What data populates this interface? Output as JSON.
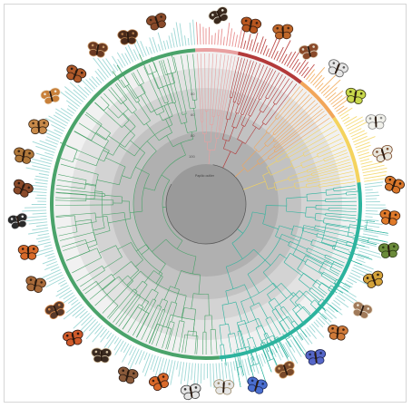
{
  "figure": {
    "scale_labels": [
      "50",
      "60",
      "80",
      "100"
    ],
    "root_label": "Papilio\noutlier",
    "clades": [
      {
        "id": "clade-pink",
        "color": "#e8a0a0",
        "tip_color": "#e88f8f"
      },
      {
        "id": "clade-darkred",
        "color": "#b33a3a",
        "tip_color": "#c0504d"
      },
      {
        "id": "clade-orange",
        "color": "#f2a65a",
        "tip_color": "#f3b36b"
      },
      {
        "id": "clade-yellow",
        "color": "#f4d35e",
        "tip_color": "#f6dc7a"
      },
      {
        "id": "clade-teal",
        "color": "#2db39e",
        "tip_color": "#9fd8d6"
      },
      {
        "id": "clade-green",
        "color": "#4aa36a",
        "tip_color": "#9fd8d6"
      }
    ],
    "ring_colors": {
      "outer_gray_1": "#e2e2e2",
      "outer_gray_2": "#d3d3d3",
      "outer_gray_3": "#c2c2c2",
      "outer_gray_4": "#b0b0b0",
      "center": "#9a9a9a",
      "tip_bars": "#a8dcd9"
    },
    "butterflies": [
      {
        "name": "butterfly-top",
        "colors": [
          "#3b2a1e",
          "#e7e2d4"
        ]
      },
      {
        "name": "butterfly-top-right-1",
        "colors": [
          "#b8561f",
          "#3a1f12"
        ]
      },
      {
        "name": "butterfly-top-right-2",
        "colors": [
          "#c0682a",
          "#4a2614"
        ]
      },
      {
        "name": "butterfly-top-right-3",
        "colors": [
          "#8a4a2a",
          "#e0d6c2"
        ]
      },
      {
        "name": "butterfly-top-right-4",
        "colors": [
          "#e6e6e6",
          "#5a5a5a"
        ]
      },
      {
        "name": "butterfly-right-green",
        "colors": [
          "#c8d84c",
          "#3a3a14"
        ]
      },
      {
        "name": "butterfly-right-white",
        "colors": [
          "#f0f0ea",
          "#8a8a8a"
        ]
      },
      {
        "name": "butterfly-right-1",
        "colors": [
          "#e8e6dc",
          "#7a4a2a"
        ]
      },
      {
        "name": "butterfly-right-2",
        "colors": [
          "#d9762a",
          "#2a1a10"
        ]
      },
      {
        "name": "butterfly-right-3",
        "colors": [
          "#e07a2a",
          "#3b1e10"
        ]
      },
      {
        "name": "butterfly-right-4",
        "colors": [
          "#6b8b3a",
          "#2a3a14"
        ]
      },
      {
        "name": "butterfly-right-5",
        "colors": [
          "#d4a33a",
          "#2e1e12"
        ]
      },
      {
        "name": "butterfly-right-6",
        "colors": [
          "#a07a5a",
          "#efe6d6"
        ]
      },
      {
        "name": "butterfly-right-7",
        "colors": [
          "#cf7a3a",
          "#3a2010"
        ]
      },
      {
        "name": "butterfly-bottom-right-1",
        "colors": [
          "#5566c8",
          "#1e2450"
        ]
      },
      {
        "name": "butterfly-bottom-right-2",
        "colors": [
          "#7a4a2a",
          "#d6a36a"
        ]
      },
      {
        "name": "butterfly-bottom-1",
        "colors": [
          "#4a6fd0",
          "#1e2a5a"
        ]
      },
      {
        "name": "butterfly-bottom-2",
        "colors": [
          "#e6e6e6",
          "#9a8a6a"
        ]
      },
      {
        "name": "butterfly-bottom-3",
        "colors": [
          "#e4e4e4",
          "#3a3a3a"
        ]
      },
      {
        "name": "butterfly-bottom-4",
        "colors": [
          "#d9692a",
          "#3a1a10"
        ]
      },
      {
        "name": "butterfly-bottom-5",
        "colors": [
          "#8a5a3a",
          "#2a1a12"
        ]
      },
      {
        "name": "butterfly-bottom-6",
        "colors": [
          "#3a2a20",
          "#d6c2a2"
        ]
      },
      {
        "name": "butterfly-bottom-left-1",
        "colors": [
          "#cf5a2a",
          "#2a1410"
        ]
      },
      {
        "name": "butterfly-bottom-left-2",
        "colors": [
          "#5a3a2a",
          "#d98a4a"
        ]
      },
      {
        "name": "butterfly-left-1",
        "colors": [
          "#a86a3a",
          "#3a2414"
        ]
      },
      {
        "name": "butterfly-left-2",
        "colors": [
          "#d86a2a",
          "#2e1a10"
        ]
      },
      {
        "name": "butterfly-left-3",
        "colors": [
          "#2a2a2a",
          "#e6e6e6"
        ]
      },
      {
        "name": "butterfly-left-4",
        "colors": [
          "#8a4a2a",
          "#2a1a12"
        ]
      },
      {
        "name": "butterfly-left-5",
        "colors": [
          "#b0783a",
          "#3a2414"
        ]
      },
      {
        "name": "butterfly-left-6",
        "colors": [
          "#c88a4a",
          "#3a2614"
        ]
      },
      {
        "name": "butterfly-left-7",
        "colors": [
          "#c8803a",
          "#f0e6d6"
        ]
      },
      {
        "name": "butterfly-top-left-1",
        "colors": [
          "#b05a2a",
          "#2a1a12"
        ]
      },
      {
        "name": "butterfly-top-left-2",
        "colors": [
          "#6a3a22",
          "#c89a6a"
        ]
      },
      {
        "name": "butterfly-top-left-3",
        "colors": [
          "#4a2a1a",
          "#b07a4a"
        ]
      },
      {
        "name": "butterfly-top-left-4",
        "colors": [
          "#8a4a2a",
          "#3a2414"
        ]
      }
    ]
  }
}
